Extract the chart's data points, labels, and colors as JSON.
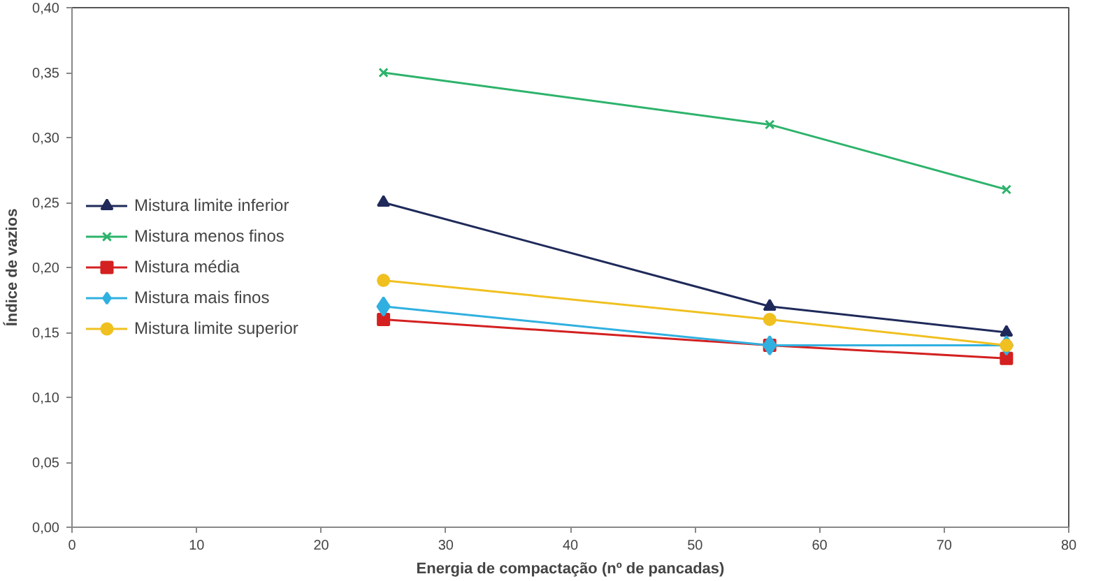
{
  "chart_data": {
    "type": "line",
    "xlabel": "Energia de compactação (nº de pancadas)",
    "ylabel": "Índice de vazios",
    "x": [
      25,
      56,
      75
    ],
    "series": [
      {
        "name": "Mistura limite inferior",
        "color": "#1f2a5a",
        "marker": "triangle",
        "values": [
          0.25,
          0.17,
          0.15
        ]
      },
      {
        "name": "Mistura menos finos",
        "color": "#2db36b",
        "marker": "cross",
        "values": [
          0.35,
          0.31,
          0.26
        ]
      },
      {
        "name": "Mistura média",
        "color": "#d42020",
        "marker": "square",
        "values": [
          0.16,
          0.14,
          0.13
        ]
      },
      {
        "name": "Mistura mais finos",
        "color": "#30b0e0",
        "marker": "diamond",
        "values": [
          0.17,
          0.14,
          0.14
        ]
      },
      {
        "name": "Mistura limite superior",
        "color": "#f0c020",
        "marker": "circle",
        "values": [
          0.19,
          0.16,
          0.14
        ]
      }
    ],
    "xlim": [
      0,
      80
    ],
    "xticks": [
      0,
      10,
      20,
      30,
      40,
      50,
      60,
      70,
      80
    ],
    "ylim": [
      0,
      0.4
    ],
    "yticks": [
      {
        "value": 0,
        "label": "0,00"
      },
      {
        "value": 0.05,
        "label": "0,05"
      },
      {
        "value": 0.1,
        "label": "0,10"
      },
      {
        "value": 0.15,
        "label": "0,15"
      },
      {
        "value": 0.2,
        "label": "0,20"
      },
      {
        "value": 0.25,
        "label": "0,25"
      },
      {
        "value": 0.3,
        "label": "0,30"
      },
      {
        "value": 0.35,
        "label": "0,35"
      },
      {
        "value": 0.4,
        "label": "0,40"
      }
    ],
    "grid": false,
    "legend": "left",
    "line_style": "solid"
  }
}
